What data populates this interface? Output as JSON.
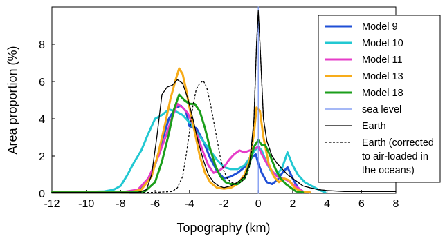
{
  "chart_data": {
    "type": "line",
    "xlabel": "Topography (km)",
    "ylabel": "Area proportion (%)",
    "xlim": [
      -12,
      8
    ],
    "ylim": [
      0,
      10
    ],
    "xticks": [
      "-12",
      "-10",
      "-8",
      "-6",
      "-4",
      "-2",
      "0",
      "2",
      "4",
      "6",
      "8"
    ],
    "xtick_values": [
      -12,
      -10,
      -8,
      -6,
      -4,
      -2,
      0,
      2,
      4,
      6,
      8
    ],
    "yticks": [
      "0",
      "2",
      "4",
      "6",
      "8"
    ],
    "ytick_values": [
      0,
      2,
      4,
      6,
      8
    ],
    "grid": false,
    "legend_position": "right",
    "series": [
      {
        "name": "Model 9",
        "color": "#1f4fd6",
        "style": "solid",
        "width": 3,
        "points": [
          [
            -12,
            0.05
          ],
          [
            -8,
            0.05
          ],
          [
            -7,
            0.15
          ],
          [
            -6.5,
            0.6
          ],
          [
            -6,
            1.5
          ],
          [
            -5.6,
            2.8
          ],
          [
            -5.2,
            4.0
          ],
          [
            -4.8,
            4.6
          ],
          [
            -4.5,
            4.7
          ],
          [
            -4.2,
            4.4
          ],
          [
            -4,
            3.6
          ],
          [
            -3.6,
            3.5
          ],
          [
            -3.2,
            2.8
          ],
          [
            -2.8,
            1.9
          ],
          [
            -2.4,
            1.2
          ],
          [
            -2,
            0.8
          ],
          [
            -1.6,
            0.9
          ],
          [
            -1.2,
            1.1
          ],
          [
            -0.8,
            1.4
          ],
          [
            -0.4,
            1.9
          ],
          [
            -0.15,
            2.1
          ],
          [
            0,
            1.6
          ],
          [
            0.2,
            1.1
          ],
          [
            0.5,
            0.6
          ],
          [
            0.8,
            0.5
          ],
          [
            1.1,
            0.7
          ],
          [
            1.4,
            1.1
          ],
          [
            1.7,
            1.4
          ],
          [
            2,
            0.8
          ],
          [
            2.3,
            0.3
          ],
          [
            2.6,
            0.1
          ],
          [
            3,
            0.05
          ]
        ]
      },
      {
        "name": "Model 10",
        "color": "#22c8d2",
        "style": "solid",
        "width": 3,
        "points": [
          [
            -12,
            0.05
          ],
          [
            -9,
            0.1
          ],
          [
            -8.4,
            0.2
          ],
          [
            -8,
            0.4
          ],
          [
            -7.6,
            1.0
          ],
          [
            -7.2,
            1.7
          ],
          [
            -6.8,
            2.3
          ],
          [
            -6.4,
            3.2
          ],
          [
            -6,
            4.0
          ],
          [
            -5.6,
            4.2
          ],
          [
            -5.2,
            4.5
          ],
          [
            -4.8,
            4.4
          ],
          [
            -4.4,
            4.2
          ],
          [
            -4,
            3.8
          ],
          [
            -3.6,
            3.3
          ],
          [
            -3.2,
            2.8
          ],
          [
            -2.8,
            2.3
          ],
          [
            -2.4,
            1.8
          ],
          [
            -2,
            1.4
          ],
          [
            -1.6,
            1.3
          ],
          [
            -1.2,
            1.3
          ],
          [
            -0.8,
            1.5
          ],
          [
            -0.5,
            1.9
          ],
          [
            -0.2,
            2.3
          ],
          [
            0,
            2.5
          ],
          [
            0.2,
            2.3
          ],
          [
            0.5,
            1.6
          ],
          [
            0.8,
            1.1
          ],
          [
            1.1,
            1.0
          ],
          [
            1.4,
            1.4
          ],
          [
            1.7,
            2.2
          ],
          [
            2,
            1.5
          ],
          [
            2.3,
            1.0
          ],
          [
            2.7,
            0.6
          ],
          [
            3.1,
            0.4
          ],
          [
            3.5,
            0.2
          ],
          [
            3.9,
            0.05
          ]
        ]
      },
      {
        "name": "Model 11",
        "color": "#e63cc8",
        "style": "solid",
        "width": 3,
        "points": [
          [
            -12,
            0.05
          ],
          [
            -8,
            0.05
          ],
          [
            -7,
            0.2
          ],
          [
            -6.4,
            0.8
          ],
          [
            -5.8,
            2.0
          ],
          [
            -5.4,
            3.0
          ],
          [
            -5,
            4.1
          ],
          [
            -4.7,
            4.8
          ],
          [
            -4.4,
            4.6
          ],
          [
            -4.1,
            4.3
          ],
          [
            -3.8,
            3.7
          ],
          [
            -3.5,
            3.0
          ],
          [
            -3.2,
            2.2
          ],
          [
            -2.9,
            1.5
          ],
          [
            -2.6,
            1.1
          ],
          [
            -2.3,
            1.2
          ],
          [
            -2,
            1.4
          ],
          [
            -1.7,
            1.8
          ],
          [
            -1.4,
            2.1
          ],
          [
            -1.1,
            2.3
          ],
          [
            -0.8,
            2.2
          ],
          [
            -0.5,
            2.3
          ],
          [
            -0.2,
            2.4
          ],
          [
            0,
            2.5
          ],
          [
            0.2,
            2.1
          ],
          [
            0.5,
            1.6
          ],
          [
            0.8,
            1.2
          ],
          [
            1.1,
            0.9
          ],
          [
            1.4,
            0.8
          ],
          [
            1.7,
            0.7
          ],
          [
            2,
            0.5
          ],
          [
            2.3,
            0.3
          ],
          [
            2.6,
            0.1
          ],
          [
            3,
            0.05
          ]
        ]
      },
      {
        "name": "Model 13",
        "color": "#f7ac1a",
        "style": "solid",
        "width": 3,
        "points": [
          [
            -12,
            0.05
          ],
          [
            -7.5,
            0.05
          ],
          [
            -6.8,
            0.2
          ],
          [
            -6.2,
            0.9
          ],
          [
            -5.8,
            2.2
          ],
          [
            -5.4,
            3.8
          ],
          [
            -5.1,
            5.1
          ],
          [
            -4.8,
            6.1
          ],
          [
            -4.6,
            6.7
          ],
          [
            -4.4,
            6.4
          ],
          [
            -4.2,
            5.6
          ],
          [
            -4,
            4.6
          ],
          [
            -3.7,
            3.3
          ],
          [
            -3.4,
            2.0
          ],
          [
            -3.1,
            1.1
          ],
          [
            -2.8,
            0.6
          ],
          [
            -2.4,
            0.3
          ],
          [
            -2,
            0.25
          ],
          [
            -1.6,
            0.3
          ],
          [
            -1.2,
            0.5
          ],
          [
            -0.8,
            1.0
          ],
          [
            -0.5,
            1.8
          ],
          [
            -0.25,
            3.2
          ],
          [
            -0.1,
            4.6
          ],
          [
            0.1,
            4.4
          ],
          [
            0.3,
            3.0
          ],
          [
            0.6,
            1.6
          ],
          [
            0.9,
            0.9
          ],
          [
            1.2,
            0.6
          ],
          [
            1.5,
            0.8
          ],
          [
            1.8,
            0.7
          ],
          [
            2.1,
            0.3
          ],
          [
            2.5,
            0.1
          ],
          [
            3,
            0.05
          ]
        ]
      },
      {
        "name": "Model 18",
        "color": "#1b9e1b",
        "style": "solid",
        "width": 3,
        "points": [
          [
            -12,
            0.05
          ],
          [
            -7.5,
            0.05
          ],
          [
            -6.6,
            0.1
          ],
          [
            -6,
            0.6
          ],
          [
            -5.6,
            1.7
          ],
          [
            -5.2,
            3.2
          ],
          [
            -4.9,
            4.5
          ],
          [
            -4.6,
            5.3
          ],
          [
            -4.3,
            5.0
          ],
          [
            -4,
            4.8
          ],
          [
            -3.7,
            4.8
          ],
          [
            -3.4,
            4.4
          ],
          [
            -3.1,
            3.5
          ],
          [
            -2.8,
            2.4
          ],
          [
            -2.5,
            1.5
          ],
          [
            -2.2,
            0.9
          ],
          [
            -1.9,
            0.6
          ],
          [
            -1.6,
            0.5
          ],
          [
            -1.2,
            0.5
          ],
          [
            -0.8,
            0.8
          ],
          [
            -0.5,
            1.6
          ],
          [
            -0.25,
            2.5
          ],
          [
            0,
            2.85
          ],
          [
            0.2,
            2.6
          ],
          [
            0.4,
            2.6
          ],
          [
            0.7,
            2.0
          ],
          [
            1,
            1.3
          ],
          [
            1.3,
            0.8
          ],
          [
            1.6,
            0.5
          ],
          [
            1.9,
            0.3
          ],
          [
            2.2,
            0.1
          ],
          [
            2.6,
            0.05
          ]
        ]
      },
      {
        "name": "sea level",
        "color": "#6f8ef0",
        "style": "solid",
        "width": 1.2,
        "points": [
          [
            0,
            0
          ],
          [
            0,
            10
          ]
        ]
      },
      {
        "name": "Earth",
        "color": "#000000",
        "style": "solid",
        "width": 1.3,
        "points": [
          [
            -12,
            0.05
          ],
          [
            -7,
            0.05
          ],
          [
            -6.5,
            0.2
          ],
          [
            -6.2,
            1.0
          ],
          [
            -5.9,
            3.0
          ],
          [
            -5.6,
            5.3
          ],
          [
            -5.3,
            5.7
          ],
          [
            -5,
            5.8
          ],
          [
            -4.7,
            6.1
          ],
          [
            -4.4,
            5.9
          ],
          [
            -4.1,
            5.1
          ],
          [
            -3.8,
            4.0
          ],
          [
            -3.5,
            2.8
          ],
          [
            -3.2,
            1.8
          ],
          [
            -2.9,
            1.0
          ],
          [
            -2.6,
            0.6
          ],
          [
            -2.3,
            0.4
          ],
          [
            -2,
            0.3
          ],
          [
            -1.6,
            0.4
          ],
          [
            -1.2,
            0.6
          ],
          [
            -0.8,
            0.9
          ],
          [
            -0.5,
            1.6
          ],
          [
            -0.25,
            4.0
          ],
          [
            -0.1,
            8.0
          ],
          [
            0,
            9.8
          ],
          [
            0.1,
            8.0
          ],
          [
            0.3,
            4.0
          ],
          [
            0.5,
            2.8
          ],
          [
            0.8,
            2.0
          ],
          [
            1.1,
            1.6
          ],
          [
            1.4,
            1.3
          ],
          [
            1.7,
            1.0
          ],
          [
            2,
            0.8
          ],
          [
            2.3,
            0.6
          ],
          [
            2.6,
            0.4
          ],
          [
            3,
            0.3
          ],
          [
            3.5,
            0.2
          ],
          [
            4,
            0.15
          ],
          [
            5,
            0.1
          ],
          [
            8,
            0.1
          ]
        ]
      },
      {
        "name": "Earth (corrected to air-loaded in the oceans)",
        "color": "#000000",
        "style": "dotted",
        "width": 1.3,
        "points": [
          [
            -12,
            0.05
          ],
          [
            -6,
            0.05
          ],
          [
            -5,
            0.1
          ],
          [
            -4.7,
            0.3
          ],
          [
            -4.4,
            0.9
          ],
          [
            -4.2,
            2.0
          ],
          [
            -4,
            3.3
          ],
          [
            -3.8,
            4.7
          ],
          [
            -3.6,
            5.6
          ],
          [
            -3.4,
            5.9
          ],
          [
            -3.2,
            6.05
          ],
          [
            -3,
            5.7
          ],
          [
            -2.8,
            4.9
          ],
          [
            -2.6,
            3.9
          ],
          [
            -2.4,
            2.9
          ],
          [
            -2.2,
            1.9
          ],
          [
            -2,
            1.2
          ],
          [
            -1.8,
            0.8
          ],
          [
            -1.6,
            0.6
          ],
          [
            -1.3,
            0.5
          ],
          [
            -1,
            0.6
          ],
          [
            -0.7,
            0.9
          ],
          [
            -0.45,
            1.6
          ],
          [
            -0.25,
            4.0
          ],
          [
            -0.1,
            8.0
          ],
          [
            0,
            9.7
          ],
          [
            0.1,
            8.0
          ],
          [
            0.3,
            4.0
          ],
          [
            0.5,
            2.8
          ],
          [
            0.8,
            2.0
          ],
          [
            1.1,
            1.6
          ],
          [
            1.4,
            1.3
          ],
          [
            1.7,
            1.0
          ],
          [
            2,
            0.8
          ],
          [
            2.3,
            0.6
          ],
          [
            2.6,
            0.4
          ],
          [
            3,
            0.3
          ],
          [
            3.5,
            0.2
          ],
          [
            4,
            0.15
          ]
        ]
      }
    ],
    "legend": [
      {
        "label": "Model 9",
        "color": "#1f4fd6",
        "style": "solid",
        "width": 3
      },
      {
        "label": "Model 10",
        "color": "#22c8d2",
        "style": "solid",
        "width": 3
      },
      {
        "label": "Model 11",
        "color": "#e63cc8",
        "style": "solid",
        "width": 3
      },
      {
        "label": "Model 13",
        "color": "#f7ac1a",
        "style": "solid",
        "width": 3
      },
      {
        "label": "Model 18",
        "color": "#1b9e1b",
        "style": "solid",
        "width": 3
      },
      {
        "label": "sea level",
        "color": "#6f8ef0",
        "style": "solid",
        "width": 1.2
      },
      {
        "label": "Earth",
        "color": "#000000",
        "style": "solid",
        "width": 1.3
      },
      {
        "lines": [
          "Earth (corrected",
          "to air-loaded in",
          "the oceans)"
        ],
        "color": "#000000",
        "style": "dotted",
        "width": 1.3
      }
    ]
  }
}
